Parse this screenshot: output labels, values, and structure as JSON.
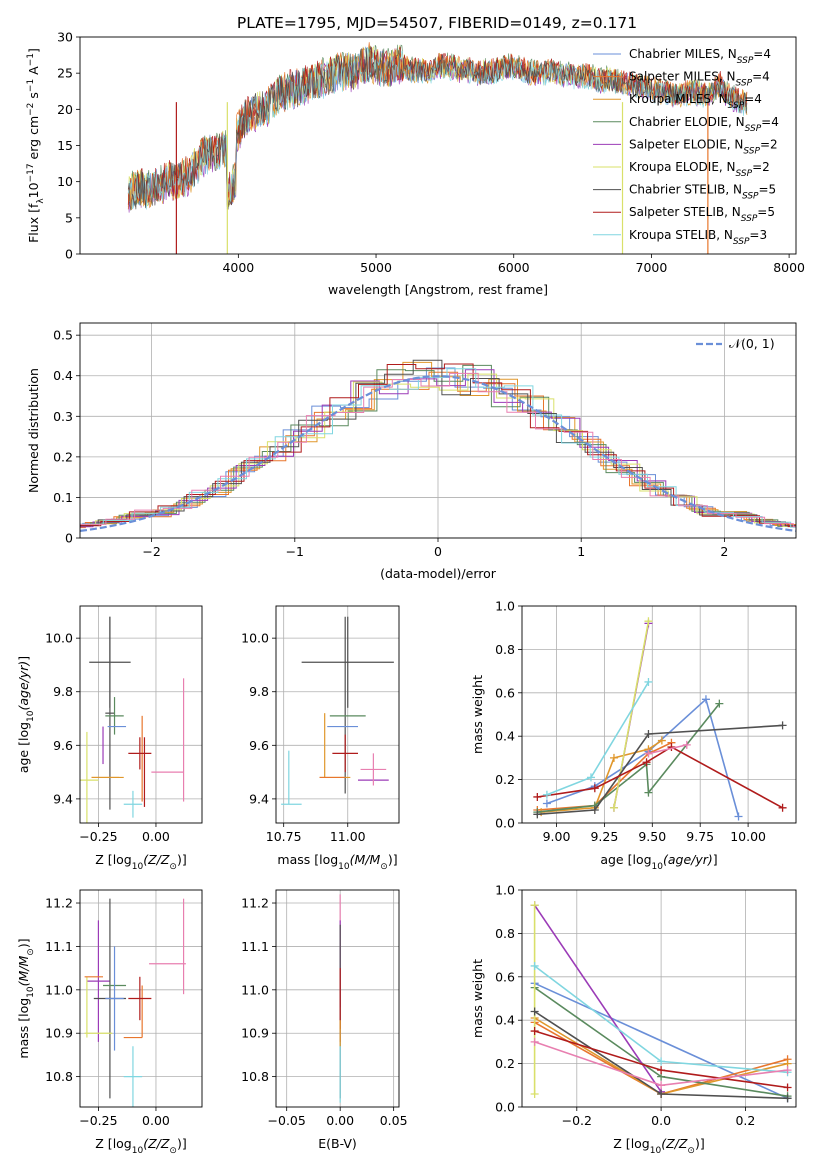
{
  "figure": {
    "title": "PLATE=1795, MJD=54507, FIBERID=0149, z=0.171"
  },
  "colors": {
    "Chabrier MILES": "#6a8fd8",
    "Salpeter MILES": "#e8762d",
    "Kroupa MILES": "#e0972b",
    "Chabrier ELODIE": "#5a8a5e",
    "Salpeter ELODIE": "#9b3bb7",
    "Kroupa ELODIE": "#d9e06a",
    "Chabrier STELIB": "#505050",
    "Salpeter STELIB": "#b01c1c",
    "Kroupa STELIB": "#80d6e0",
    "pink": "#e87fb0",
    "normal_curve": "#6a8fd8"
  },
  "chart_data": [
    {
      "id": "spectrum",
      "type": "line",
      "xlabel": "wavelength [Angstrom, rest frame]",
      "ylabel": "Flux [f_λ 10^-17 erg cm^-2 s^-1 A^-1]",
      "xlim": [
        2850,
        8050
      ],
      "ylim": [
        0,
        30
      ],
      "xticks": [
        4000,
        5000,
        6000,
        7000,
        8000
      ],
      "yticks": [
        0,
        5,
        10,
        15,
        20,
        25,
        30
      ],
      "legend_position": "top-right",
      "legend": [
        {
          "name": "Chabrier MILES",
          "nssp": "4"
        },
        {
          "name": "Salpeter MILES",
          "nssp": "4"
        },
        {
          "name": "Kroupa MILES",
          "nssp": "4"
        },
        {
          "name": "Chabrier ELODIE",
          "nssp": "4"
        },
        {
          "name": "Salpeter ELODIE",
          "nssp": "2"
        },
        {
          "name": "Kroupa ELODIE",
          "nssp": "2"
        },
        {
          "name": "Chabrier STELIB",
          "nssp": "5"
        },
        {
          "name": "Salpeter STELIB",
          "nssp": "5"
        },
        {
          "name": "Kroupa STELIB",
          "nssp": "3"
        }
      ],
      "x": [
        3200,
        3250,
        3300,
        3350,
        3400,
        3450,
        3500,
        3550,
        3600,
        3650,
        3700,
        3750,
        3800,
        3850,
        3900,
        3950,
        4000,
        4050,
        4100,
        4150,
        4200,
        4250,
        4300,
        4350,
        4400,
        4450,
        4500,
        4550,
        4600,
        4650,
        4700,
        4750,
        4800,
        4850,
        4900,
        4950,
        5000,
        5050,
        5100,
        5150,
        5200,
        5250,
        5300,
        5350,
        5400,
        5450,
        5500,
        5550,
        5600,
        5650,
        5700,
        5750,
        5800,
        5850,
        5900,
        5950,
        6000,
        6050,
        6100,
        6150,
        6200,
        6250,
        6300,
        6350,
        6400,
        6450,
        6500,
        6550,
        6600,
        6650,
        6700,
        6750,
        6800,
        6850,
        6900,
        6950,
        7000,
        7050,
        7100,
        7150,
        7200,
        7250,
        7300,
        7350,
        7400,
        7450,
        7500,
        7550,
        7600,
        7650,
        7700
      ],
      "y": [
        8.5,
        8.8,
        9.0,
        8.7,
        9.2,
        9.5,
        10.5,
        9.8,
        10.5,
        11.0,
        12.5,
        13.5,
        14.0,
        14.2,
        14.5,
        15.0,
        17.0,
        19.0,
        19.5,
        20.0,
        20.2,
        21.0,
        22.0,
        22.5,
        22.8,
        23.0,
        23.5,
        24.0,
        24.2,
        24.5,
        25.0,
        25.2,
        25.5,
        25.0,
        26.0,
        26.5,
        26.0,
        25.8,
        25.5,
        26.2,
        26.0,
        25.5,
        25.2,
        25.5,
        25.0,
        26.2,
        26.0,
        25.8,
        25.5,
        25.6,
        25.2,
        25.0,
        25.2,
        25.3,
        25.5,
        26.0,
        25.8,
        25.5,
        25.2,
        25.0,
        25.0,
        25.2,
        25.0,
        24.8,
        24.8,
        24.6,
        24.5,
        24.5,
        24.2,
        24.0,
        24.2,
        23.8,
        23.5,
        23.5,
        23.2,
        23.0,
        22.8,
        22.5,
        22.3,
        22.0,
        22.0,
        22.2,
        22.5,
        22.2,
        22.0,
        22.5,
        23.5,
        22.0,
        21.5,
        21.0,
        20.8
      ],
      "dropouts": [
        {
          "x": 3550,
          "series": "Salpeter STELIB"
        },
        {
          "x": 3920,
          "series": "Kroupa ELODIE"
        },
        {
          "x": 6790,
          "series": "Kroupa ELODIE"
        },
        {
          "x": 7410,
          "series": "Salpeter MILES"
        }
      ]
    },
    {
      "id": "residual-histogram",
      "type": "line",
      "xlabel": "(data-model)/error",
      "ylabel": "Normed distribution",
      "xlim": [
        -2.5,
        2.5
      ],
      "ylim": [
        0,
        0.53
      ],
      "xticks": [
        -2,
        -1,
        0,
        1,
        2
      ],
      "yticks": [
        0.0,
        0.1,
        0.2,
        0.3,
        0.4,
        0.5
      ],
      "grid": true,
      "legend_position": "top-right",
      "legend": [
        {
          "name": "𝒩(0, 1)"
        }
      ],
      "bin_edges": [
        -2.6,
        -2.4,
        -2.2,
        -2.0,
        -1.8,
        -1.6,
        -1.4,
        -1.2,
        -1.0,
        -0.8,
        -0.6,
        -0.4,
        -0.2,
        0.0,
        0.2,
        0.4,
        0.6,
        0.8,
        1.0,
        1.2,
        1.4,
        1.6,
        1.8,
        2.0,
        2.2,
        2.4,
        2.6
      ],
      "normal_curve": "N(0,1)"
    },
    {
      "id": "age-vs-Z",
      "type": "scatter",
      "xlabel": "Z [log10(Z/Z⊙)]",
      "ylabel": "age  [log10(age/yr)]",
      "xlim": [
        -0.33,
        0.2
      ],
      "ylim": [
        9.31,
        10.12
      ],
      "xticks": [
        "-0.25",
        "0.00"
      ],
      "yticks": [
        "9.4",
        "9.6",
        "9.8",
        "10.0"
      ],
      "grid": true
    },
    {
      "id": "age-vs-mass",
      "type": "scatter",
      "xlabel": "mass [log10(M/M⊙)]",
      "ylabel": "",
      "xlim": [
        10.72,
        11.2
      ],
      "ylim": [
        9.31,
        10.12
      ],
      "xticks": [
        "10.75",
        "11.00"
      ],
      "yticks": [
        "9.4",
        "9.6",
        "9.8",
        "10.0"
      ],
      "grid": true
    },
    {
      "id": "mass-weight-vs-age",
      "type": "line",
      "xlabel": "age  [log10(age/yr)]",
      "ylabel": "mass weight",
      "xlim": [
        8.82,
        10.25
      ],
      "ylim": [
        0.0,
        1.0
      ],
      "xticks": [
        "9.00",
        "9.25",
        "9.50",
        "9.75",
        "10.00"
      ],
      "yticks": [
        "0.0",
        "0.2",
        "0.4",
        "0.6",
        "0.8",
        "1.0"
      ],
      "grid": true,
      "series": [
        {
          "name": "Chabrier MILES",
          "x": [
            8.95,
            9.2,
            9.48,
            9.78,
            9.95
          ],
          "y": [
            0.09,
            0.17,
            0.33,
            0.57,
            0.03
          ]
        },
        {
          "name": "Salpeter MILES",
          "x": [
            8.9,
            9.2,
            9.48,
            9.6
          ],
          "y": [
            0.06,
            0.08,
            0.32,
            0.37
          ]
        },
        {
          "name": "Kroupa MILES",
          "x": [
            8.92,
            9.2,
            9.3,
            9.48,
            9.55
          ],
          "y": [
            0.05,
            0.07,
            0.3,
            0.34,
            0.38
          ]
        },
        {
          "name": "Chabrier ELODIE",
          "x": [
            8.9,
            9.2,
            9.47,
            9.48,
            9.85
          ],
          "y": [
            0.05,
            0.08,
            0.27,
            0.14,
            0.55
          ]
        },
        {
          "name": "Salpeter ELODIE",
          "x": [
            9.3,
            9.48
          ],
          "y": [
            0.07,
            0.92
          ]
        },
        {
          "name": "Kroupa ELODIE",
          "x": [
            9.3,
            9.48
          ],
          "y": [
            0.07,
            0.93
          ]
        },
        {
          "name": "Chabrier STELIB",
          "x": [
            8.9,
            9.2,
            9.48,
            10.18
          ],
          "y": [
            0.04,
            0.06,
            0.41,
            0.45
          ]
        },
        {
          "name": "Salpeter STELIB",
          "x": [
            8.9,
            9.2,
            9.47,
            9.6,
            10.18
          ],
          "y": [
            0.12,
            0.16,
            0.28,
            0.35,
            0.07
          ]
        },
        {
          "name": "Kroupa STELIB",
          "x": [
            8.95,
            9.18,
            9.48
          ],
          "y": [
            0.13,
            0.21,
            0.65
          ]
        },
        {
          "name": "pink",
          "x": [
            9.48,
            9.68
          ],
          "y": [
            0.32,
            0.36
          ]
        }
      ]
    },
    {
      "id": "mass-vs-Z",
      "type": "scatter",
      "xlabel": "Z [log10(Z/Z⊙)]",
      "ylabel": "mass [log10(M/M⊙)]",
      "xlim": [
        -0.33,
        0.2
      ],
      "ylim": [
        10.73,
        11.23
      ],
      "xticks": [
        "-0.25",
        "0.00"
      ],
      "yticks": [
        "10.8",
        "10.9",
        "11.0",
        "11.1",
        "11.2"
      ],
      "grid": true
    },
    {
      "id": "mass-vs-EBV",
      "type": "scatter",
      "xlabel": "E(B-V)",
      "ylabel": "",
      "xlim": [
        -0.06,
        0.055
      ],
      "ylim": [
        10.73,
        11.23
      ],
      "xticks": [
        "-0.05",
        "0.00",
        "0.05"
      ],
      "yticks": [
        "10.8",
        "10.9",
        "11.0",
        "11.1",
        "11.2"
      ],
      "grid": true
    },
    {
      "id": "mass-weight-vs-Z",
      "type": "line",
      "xlabel": "Z [log10(Z/Z⊙)]",
      "ylabel": "mass weight",
      "xlim": [
        -0.33,
        0.32
      ],
      "ylim": [
        0.0,
        1.0
      ],
      "xticks": [
        "-0.2",
        "0.0",
        "0.2"
      ],
      "yticks": [
        "0.0",
        "0.2",
        "0.4",
        "0.6",
        "0.8",
        "1.0"
      ],
      "grid": true,
      "series": [
        {
          "name": "Chabrier MILES",
          "x": [
            -0.3,
            0.3
          ],
          "y": [
            0.57,
            0.04
          ]
        },
        {
          "name": "Salpeter MILES",
          "x": [
            -0.3,
            0.0,
            0.3
          ],
          "y": [
            0.39,
            0.06,
            0.22
          ]
        },
        {
          "name": "Kroupa MILES",
          "x": [
            -0.3,
            0.0,
            0.3
          ],
          "y": [
            0.41,
            0.06,
            0.2
          ]
        },
        {
          "name": "Chabrier ELODIE",
          "x": [
            -0.3,
            0.0,
            0.3
          ],
          "y": [
            0.55,
            0.14,
            0.05
          ]
        },
        {
          "name": "Salpeter ELODIE",
          "x": [
            -0.3,
            0.0
          ],
          "y": [
            0.93,
            0.07
          ]
        },
        {
          "name": "Kroupa ELODIE",
          "x": [
            -0.3,
            -0.3
          ],
          "y": [
            0.93,
            0.06
          ]
        },
        {
          "name": "Chabrier STELIB",
          "x": [
            -0.3,
            0.0,
            0.3
          ],
          "y": [
            0.44,
            0.06,
            0.04
          ]
        },
        {
          "name": "Salpeter STELIB",
          "x": [
            -0.3,
            0.0,
            0.3
          ],
          "y": [
            0.35,
            0.17,
            0.09
          ]
        },
        {
          "name": "Kroupa STELIB",
          "x": [
            -0.3,
            0.0,
            0.3
          ],
          "y": [
            0.65,
            0.21,
            0.16
          ]
        },
        {
          "name": "pink",
          "x": [
            -0.3,
            0.0,
            0.3
          ],
          "y": [
            0.3,
            0.1,
            0.17
          ]
        }
      ]
    }
  ]
}
